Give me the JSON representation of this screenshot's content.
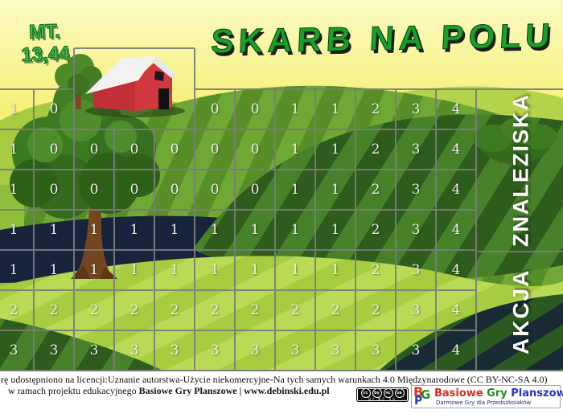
{
  "verse": {
    "line1": "MT.",
    "line2": "13,44"
  },
  "title": "SKARB NA POLU",
  "board": {
    "columns": 12,
    "rows": [
      [
        "1",
        "0",
        "",
        "",
        "",
        "0",
        "0",
        "1",
        "1",
        "2",
        "3",
        "4"
      ],
      [
        "1",
        "0",
        "0",
        "0",
        "0",
        "0",
        "0",
        "1",
        "1",
        "2",
        "3",
        "4"
      ],
      [
        "1",
        "0",
        "0",
        "0",
        "0",
        "0",
        "0",
        "1",
        "1",
        "2",
        "3",
        "4"
      ],
      [
        "1",
        "1",
        "1",
        "1",
        "1",
        "1",
        "1",
        "1",
        "1",
        "2",
        "3",
        "4"
      ],
      [
        "1",
        "1",
        "1",
        "1",
        "1",
        "1",
        "1",
        "1",
        "1",
        "2",
        "3",
        "4"
      ],
      [
        "2",
        "2",
        "2",
        "2",
        "2",
        "2",
        "2",
        "2",
        "2",
        "2",
        "3",
        "4"
      ],
      [
        "3",
        "3",
        "3",
        "3",
        "3",
        "3",
        "3",
        "3",
        "3",
        "3",
        "3",
        "4"
      ]
    ],
    "side_labels": {
      "top": "ZNALEZISKA",
      "bottom": "AKCJA"
    }
  },
  "footer": {
    "license_line": "rę udostępniono na licencji:Uznanie autorstwa-Użycie niekomercyjne-Na tych samych warunkach 4.0 Międzynarodowe (CC BY-NC-SA 4.0)",
    "project_prefix": "w ramach projektu edukacyjnego ",
    "project_bold": "Basiowe Gry Planszowe | www.debinski.edu.pl",
    "cc_badge": {
      "icon_cc": "cc",
      "icon_by": "by",
      "icon_nc": "nc",
      "icon_sa": "sa",
      "sub": "BY NC SA"
    },
    "logo": {
      "mono_b": "B",
      "mono_g": "G",
      "mono_p": "P",
      "word1": "Basiowe",
      "word2": "Gry",
      "word3": "Planszowe",
      "tagline": "Darmowe Gry dla Przedszkolaków"
    }
  },
  "colors": {
    "title_green": "#17a12b",
    "verse_green": "#44c251",
    "sky_top": "#fbfac4",
    "sky_bottom": "#f3ea42",
    "navy": "#17243c",
    "grid_line": "#7c7c7c",
    "number": "#f1f0e9"
  }
}
